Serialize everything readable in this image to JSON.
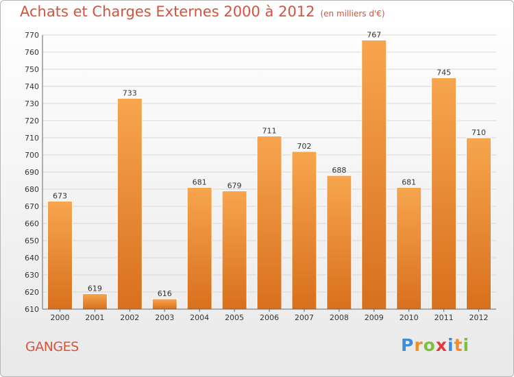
{
  "title": "Achats et Charges Externes 2000 à 2012",
  "unit": "(en milliers d'€)",
  "commune": "GANGES",
  "logo": {
    "text": "Proxiti",
    "letters": [
      "P",
      "r",
      "o",
      "x",
      "i",
      "t",
      "i"
    ],
    "colors": [
      "#3b8fd9",
      "#f28c28",
      "#7bbf3a",
      "#e03a3a",
      "#3b8fd9",
      "#f28c28",
      "#7bbf3a"
    ]
  },
  "colors": {
    "bar_light": "#f7a54f",
    "bar_dark": "#d8701d",
    "title": "#d6533a",
    "grid": "#d7d7d7",
    "axis": "#666666"
  },
  "chart_data": {
    "type": "bar",
    "title": "Achats et Charges Externes 2000 à 2012",
    "ylabel": "en milliers d'€",
    "categories": [
      "2000",
      "2001",
      "2002",
      "2003",
      "2004",
      "2005",
      "2006",
      "2007",
      "2008",
      "2009",
      "2010",
      "2011",
      "2012"
    ],
    "values": [
      673,
      619,
      733,
      616,
      681,
      679,
      711,
      702,
      688,
      767,
      681,
      745,
      710
    ],
    "ylim": [
      610,
      770
    ],
    "yticks": [
      610,
      620,
      630,
      640,
      650,
      660,
      670,
      680,
      690,
      700,
      710,
      720,
      730,
      740,
      750,
      760,
      770
    ],
    "grid": true
  }
}
